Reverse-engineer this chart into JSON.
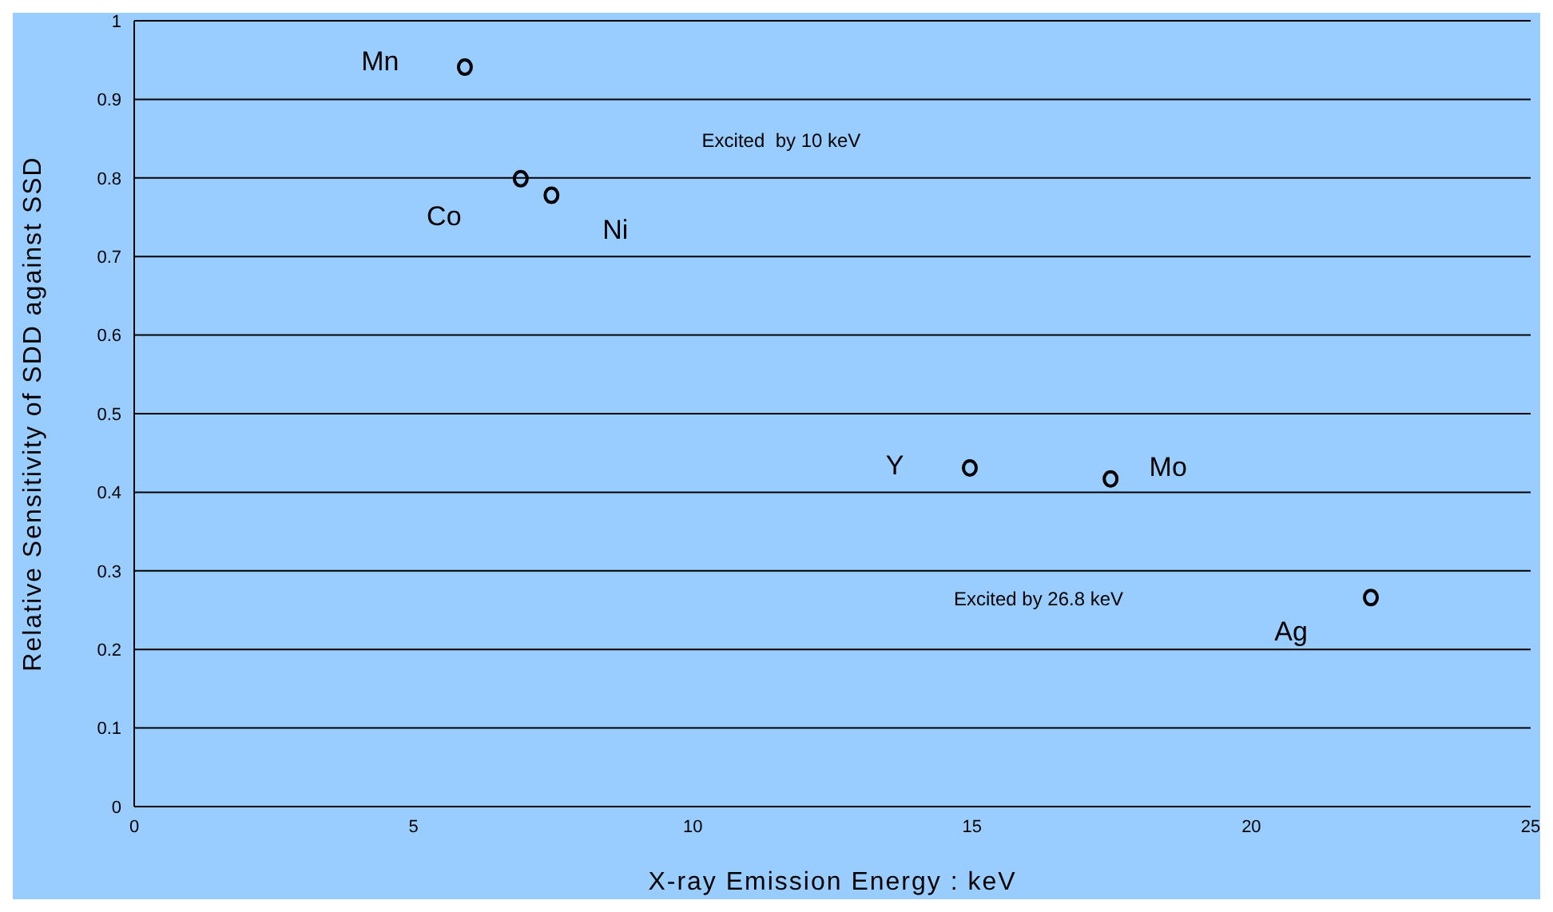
{
  "chart_data": {
    "type": "scatter",
    "xlabel": "X-ray Emission  Energy : keV",
    "ylabel": "Relative Sensitivity of SDD against SSD",
    "x": [
      5.92,
      6.92,
      7.47,
      14.96,
      17.48,
      22.14
    ],
    "series": [
      {
        "color": "#000000",
        "values": [
          0.941,
          0.799,
          0.778,
          0.431,
          0.417,
          0.266
        ]
      }
    ],
    "marker": "circle",
    "grid": "y",
    "legend": false,
    "xlim": [
      0,
      25
    ],
    "xticks": [
      0,
      5,
      10,
      15,
      20,
      25
    ],
    "ylim": [
      0,
      1
    ],
    "yticks": [
      0,
      0.1,
      0.2,
      0.3,
      0.4,
      0.5,
      0.6,
      0.7,
      0.8,
      0.9,
      1
    ],
    "annotations": [
      {
        "text": "Mn",
        "x": 5.92,
        "y": 0.941
      },
      {
        "text": "Co",
        "x": 6.92,
        "y": 0.799
      },
      {
        "text": "Ni",
        "x": 7.47,
        "y": 0.778
      },
      {
        "text": "Y",
        "x": 14.96,
        "y": 0.431
      },
      {
        "text": "Mo",
        "x": 17.48,
        "y": 0.417
      },
      {
        "text": "Ag",
        "x": 22.14,
        "y": 0.266
      },
      "Excited  by 10 keV",
      "Excited by 26.8 keV"
    ]
  }
}
